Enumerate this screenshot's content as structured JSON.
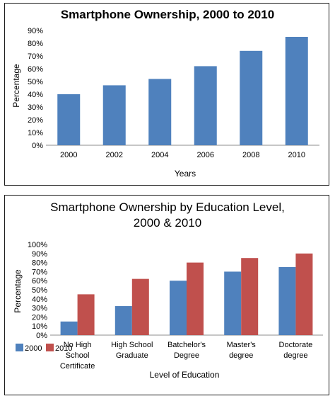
{
  "chart_data": [
    {
      "type": "bar",
      "title": "Smartphone Ownership, 2000 to 2010",
      "xlabel": "Years",
      "ylabel": "Percentage",
      "categories": [
        "2000",
        "2002",
        "2004",
        "2006",
        "2008",
        "2010"
      ],
      "values": [
        40,
        47,
        52,
        62,
        74,
        85
      ],
      "ylim": [
        0,
        90
      ],
      "yticks": [
        "0%",
        "10%",
        "20%",
        "30%",
        "40%",
        "50%",
        "60%",
        "70%",
        "80%",
        "90%"
      ],
      "grid": false,
      "legend": "none",
      "colors": [
        "#4f81bd"
      ]
    },
    {
      "type": "bar",
      "title_line1": "Smartphone Ownership by Education Level,",
      "title_line2": "2000  & 2010",
      "xlabel": "Level of Education",
      "ylabel": "Percentage",
      "categories": [
        [
          "No High",
          "School",
          "Certificate"
        ],
        [
          "High School",
          "Graduate"
        ],
        [
          "Batchelor's",
          "Degree"
        ],
        [
          "Master's",
          "degree"
        ],
        [
          "Doctorate",
          "degree"
        ]
      ],
      "series": [
        {
          "name": "2000",
          "values": [
            15,
            32,
            60,
            70,
            75
          ],
          "color": "#4f81bd"
        },
        {
          "name": "2010",
          "values": [
            45,
            62,
            80,
            85,
            90
          ],
          "color": "#c0504d"
        }
      ],
      "ylim": [
        0,
        100
      ],
      "yticks": [
        "0%",
        "10%",
        "20%",
        "30%",
        "40%",
        "50%",
        "60%",
        "70%",
        "80%",
        "90%",
        "100%"
      ],
      "grid": false,
      "legend": "bottom-left"
    }
  ]
}
